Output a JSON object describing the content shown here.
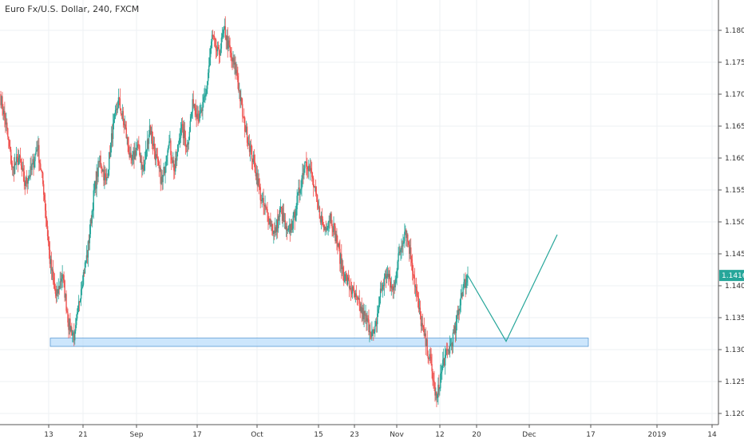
{
  "chart_data": {
    "type": "candlestick",
    "title": "Euro Fx/U.S. Dollar, 240, FXCM",
    "y_range": [
      1.119,
      1.1825
    ],
    "y_ticks": [
      "1.12000",
      "1.12500",
      "1.13000",
      "1.13500",
      "1.14000",
      "1.14500",
      "1.15000",
      "1.15500",
      "1.16000",
      "1.16500",
      "1.17000",
      "1.17500",
      "1.18000"
    ],
    "x_tick_labels": [
      "13",
      "21",
      "Sep",
      "17",
      "Oct",
      "15",
      "23",
      "Nov",
      "12",
      "20",
      "Dec",
      "17",
      "2019",
      "14"
    ],
    "last_price": "1.14161",
    "colors": {
      "up": "#26a69a",
      "down": "#ef5350",
      "zone_fill": "#bbdefb",
      "zone_border": "#5b9bd5",
      "projection": "#26a69a",
      "grid": "#eef0f3",
      "axis": "#555555"
    },
    "price_path": [
      [
        1.17,
        1.165
      ],
      [
        1.165,
        1.158
      ],
      [
        1.158,
        1.16
      ],
      [
        1.16,
        1.156
      ],
      [
        1.156,
        1.158
      ],
      [
        1.158,
        1.162
      ],
      [
        1.162,
        1.155
      ],
      [
        1.155,
        1.144
      ],
      [
        1.144,
        1.138
      ],
      [
        1.138,
        1.142
      ],
      [
        1.142,
        1.134
      ],
      [
        1.134,
        1.132
      ],
      [
        1.132,
        1.14
      ],
      [
        1.14,
        1.145
      ],
      [
        1.145,
        1.154
      ],
      [
        1.154,
        1.16
      ],
      [
        1.16,
        1.156
      ],
      [
        1.156,
        1.164
      ],
      [
        1.164,
        1.169
      ],
      [
        1.169,
        1.165
      ],
      [
        1.165,
        1.159
      ],
      [
        1.159,
        1.162
      ],
      [
        1.162,
        1.158
      ],
      [
        1.158,
        1.165
      ],
      [
        1.165,
        1.16
      ],
      [
        1.16,
        1.156
      ],
      [
        1.156,
        1.163
      ],
      [
        1.163,
        1.158
      ],
      [
        1.158,
        1.165
      ],
      [
        1.165,
        1.162
      ],
      [
        1.162,
        1.169
      ],
      [
        1.169,
        1.166
      ],
      [
        1.166,
        1.17
      ],
      [
        1.17,
        1.179
      ],
      [
        1.179,
        1.176
      ],
      [
        1.176,
        1.18
      ],
      [
        1.18,
        1.176
      ],
      [
        1.176,
        1.173
      ],
      [
        1.173,
        1.166
      ],
      [
        1.166,
        1.162
      ],
      [
        1.162,
        1.158
      ],
      [
        1.158,
        1.153
      ],
      [
        1.153,
        1.151
      ],
      [
        1.151,
        1.148
      ],
      [
        1.148,
        1.152
      ],
      [
        1.152,
        1.148
      ],
      [
        1.148,
        1.15
      ],
      [
        1.15,
        1.155
      ],
      [
        1.155,
        1.16
      ],
      [
        1.16,
        1.157
      ],
      [
        1.157,
        1.152
      ],
      [
        1.152,
        1.149
      ],
      [
        1.149,
        1.151
      ],
      [
        1.151,
        1.147
      ],
      [
        1.147,
        1.142
      ],
      [
        1.142,
        1.14
      ],
      [
        1.14,
        1.138
      ],
      [
        1.138,
        1.136
      ],
      [
        1.136,
        1.134
      ],
      [
        1.134,
        1.132
      ],
      [
        1.132,
        1.139
      ],
      [
        1.139,
        1.142
      ],
      [
        1.142,
        1.139
      ],
      [
        1.139,
        1.145
      ],
      [
        1.145,
        1.149
      ],
      [
        1.149,
        1.144
      ],
      [
        1.144,
        1.137
      ],
      [
        1.137,
        1.132
      ],
      [
        1.132,
        1.128
      ],
      [
        1.128,
        1.122
      ],
      [
        1.122,
        1.128
      ],
      [
        1.128,
        1.13
      ],
      [
        1.13,
        1.133
      ],
      [
        1.133,
        1.139
      ],
      [
        1.139,
        1.1416
      ]
    ],
    "projection": [
      [
        1.14161,
        0
      ],
      [
        1.1313,
        1
      ],
      [
        1.148,
        2
      ]
    ],
    "support_zone": [
      1.1305,
      1.1318
    ]
  }
}
